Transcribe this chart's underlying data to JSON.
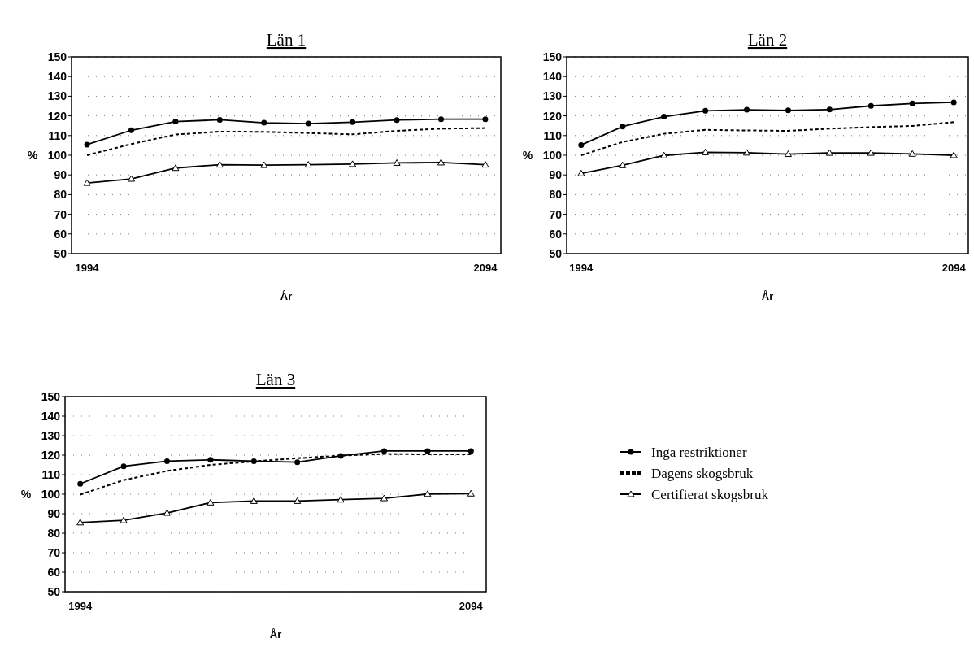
{
  "chart_data": [
    {
      "type": "line",
      "title": "Län 1",
      "xlabel": "År",
      "ylabel": "%",
      "categories": [
        "1994",
        null,
        null,
        null,
        null,
        null,
        null,
        null,
        null,
        "2094"
      ],
      "ylim": [
        50,
        150
      ],
      "yticks": [
        50,
        60,
        70,
        80,
        90,
        100,
        110,
        120,
        130,
        140,
        150
      ],
      "grid": "y",
      "legend": false,
      "series": [
        {
          "color": "#000000",
          "marker": "circle",
          "line_style": "solid",
          "values": [
            105.4,
            112.7,
            117.1,
            118,
            116.5,
            116.1,
            116.8,
            117.9,
            118.3,
            118.3
          ]
        },
        {
          "color": "#000000",
          "marker": "none",
          "line_style": "dashed",
          "values": [
            100,
            105.7,
            110.5,
            112,
            111.9,
            111.3,
            110.6,
            112.4,
            113.5,
            113.8
          ]
        },
        {
          "color": "#000000",
          "marker": "triangle",
          "line_style": "solid",
          "values": [
            85.9,
            88,
            93.5,
            95.2,
            95,
            95.2,
            95.5,
            96.1,
            96.3,
            95.2
          ]
        }
      ]
    },
    {
      "type": "line",
      "title": "Län 2",
      "xlabel": "År",
      "ylabel": "%",
      "categories": [
        "1994",
        null,
        null,
        null,
        null,
        null,
        null,
        null,
        null,
        "2094"
      ],
      "ylim": [
        50,
        150
      ],
      "yticks": [
        50,
        60,
        70,
        80,
        90,
        100,
        110,
        120,
        130,
        140,
        150
      ],
      "grid": "y",
      "legend": false,
      "series": [
        {
          "color": "#000000",
          "marker": "circle",
          "line_style": "solid",
          "values": [
            105.2,
            114.6,
            119.6,
            122.6,
            123.1,
            122.8,
            123.2,
            125.1,
            126.3,
            126.9
          ]
        },
        {
          "color": "#000000",
          "marker": "none",
          "line_style": "dashed",
          "values": [
            100,
            106.7,
            110.9,
            112.9,
            112.6,
            112.4,
            113.5,
            114.3,
            114.9,
            116.8
          ]
        },
        {
          "color": "#000000",
          "marker": "triangle",
          "line_style": "solid",
          "values": [
            90.8,
            94.9,
            99.9,
            101.5,
            101.3,
            100.6,
            101.2,
            101.2,
            100.7,
            100
          ]
        }
      ]
    },
    {
      "type": "line",
      "title": "Län 3",
      "xlabel": "År",
      "ylabel": "%",
      "categories": [
        "1994",
        null,
        null,
        null,
        null,
        null,
        null,
        null,
        null,
        "2094"
      ],
      "ylim": [
        50,
        150
      ],
      "yticks": [
        50,
        60,
        70,
        80,
        90,
        100,
        110,
        120,
        130,
        140,
        150
      ],
      "grid": "y",
      "legend": "right",
      "series": [
        {
          "name": "Inga restriktioner",
          "color": "#000000",
          "marker": "circle",
          "line_style": "solid",
          "values": [
            105.3,
            114.3,
            116.9,
            117.6,
            116.9,
            116.4,
            119.6,
            122.1,
            122.1,
            122.1
          ]
        },
        {
          "name": "Dagens skogsbruk",
          "color": "#000000",
          "marker": "none",
          "line_style": "dashed",
          "values": [
            99.8,
            107.2,
            111.9,
            115,
            116.8,
            118.4,
            119.8,
            120.6,
            120.4,
            120.4
          ]
        },
        {
          "name": "Certifierat skogsbruk",
          "color": "#000000",
          "marker": "triangle",
          "line_style": "solid",
          "values": [
            85.5,
            86.6,
            90.4,
            95.7,
            96.5,
            96.5,
            97.2,
            97.9,
            100.1,
            100.3
          ]
        }
      ]
    }
  ]
}
